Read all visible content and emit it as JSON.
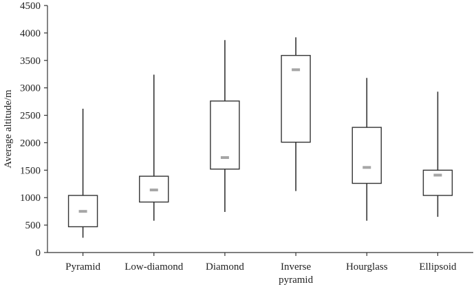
{
  "chart_data": {
    "type": "box",
    "ylabel": "Average altitude/m",
    "xlabel": "",
    "ylim": [
      0,
      4500
    ],
    "yticks": [
      0,
      500,
      1000,
      1500,
      2000,
      2500,
      3000,
      3500,
      4000,
      4500
    ],
    "grid": false,
    "categories": [
      {
        "label": [
          "Pyramid"
        ],
        "min": 270,
        "q1": 470,
        "median": 750,
        "q3": 1040,
        "max": 2620
      },
      {
        "label": [
          "Low-diamond"
        ],
        "min": 580,
        "q1": 920,
        "median": 1140,
        "q3": 1390,
        "max": 3240
      },
      {
        "label": [
          "Diamond"
        ],
        "min": 740,
        "q1": 1520,
        "median": 1730,
        "q3": 2760,
        "max": 3870
      },
      {
        "label": [
          "Inverse",
          "pyramid"
        ],
        "min": 1120,
        "q1": 2010,
        "median": 3330,
        "q3": 3590,
        "max": 3920
      },
      {
        "label": [
          "Hourglass"
        ],
        "min": 580,
        "q1": 1260,
        "median": 1550,
        "q3": 2280,
        "max": 3180
      },
      {
        "label": [
          "Ellipsoid"
        ],
        "min": 650,
        "q1": 1040,
        "median": 1410,
        "q3": 1500,
        "max": 2930
      }
    ]
  }
}
